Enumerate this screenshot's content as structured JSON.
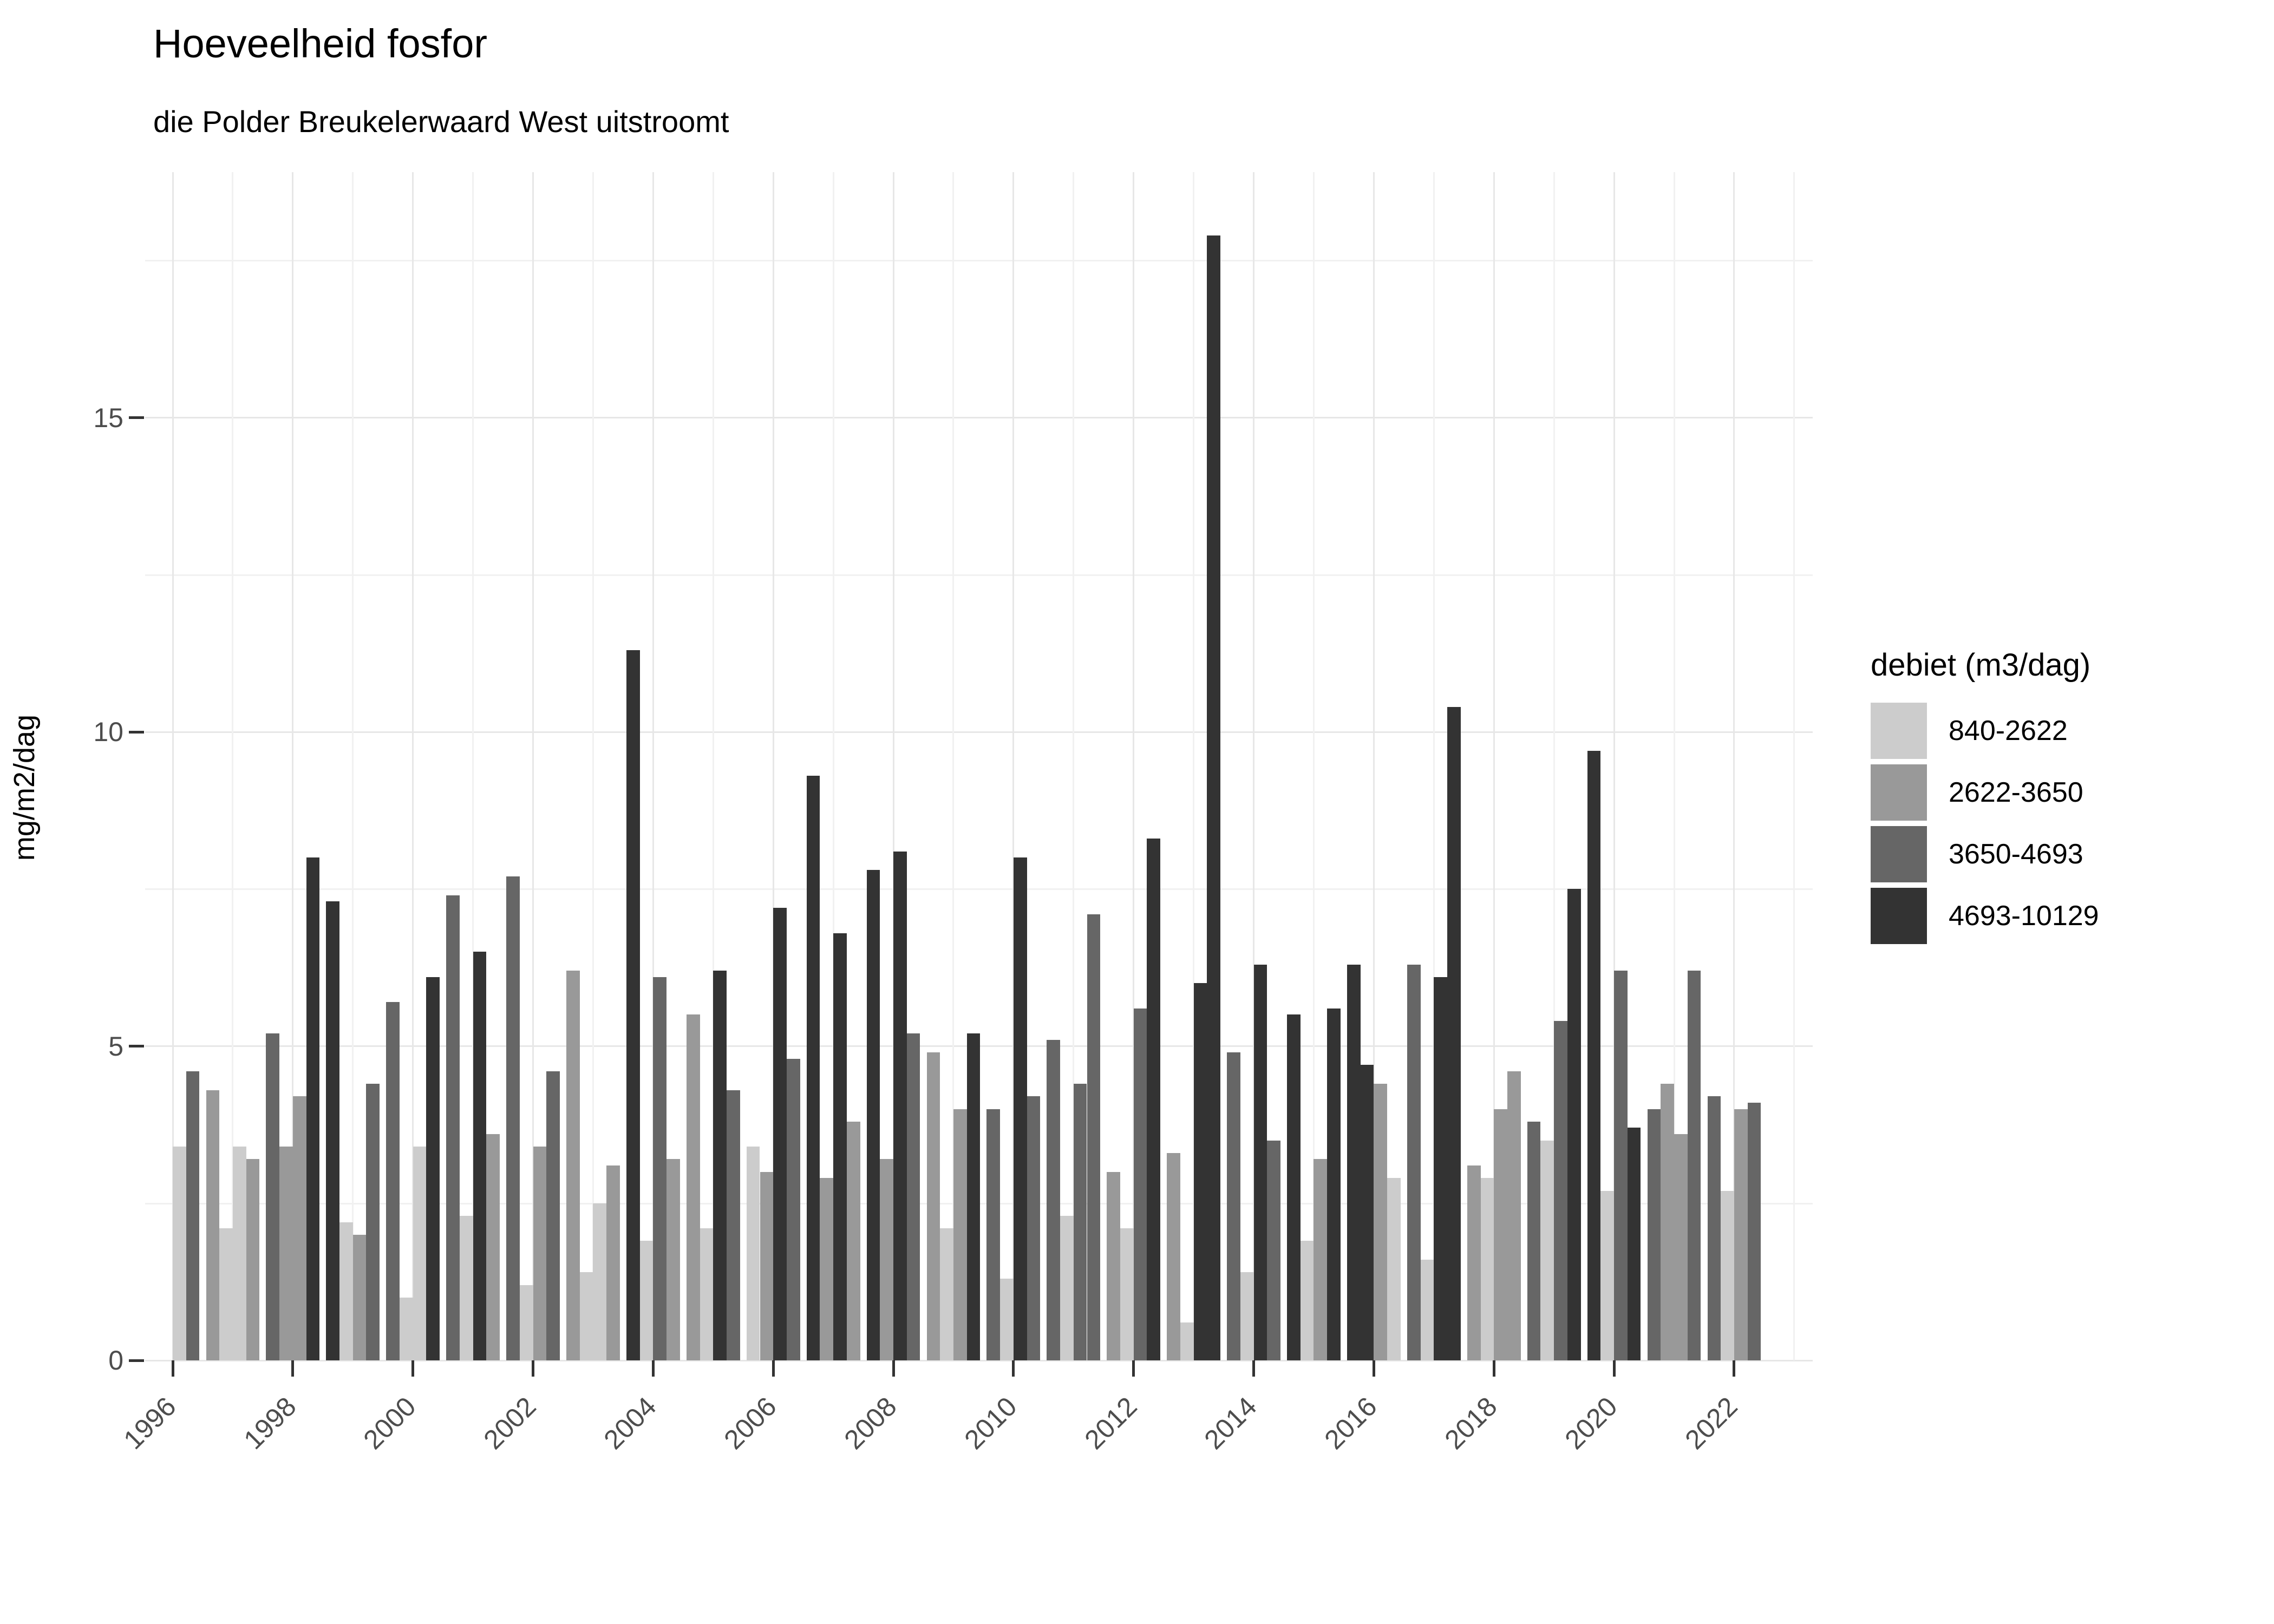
{
  "title": "Hoeveelheid fosfor",
  "subtitle": "die Polder Breukelerwaard West uitstroomt",
  "y_axis": {
    "label": "mg/m2/dag",
    "ticks": [
      0,
      5,
      10,
      15
    ],
    "minor_ticks": [
      2.5,
      7.5,
      12.5,
      17.5
    ],
    "range": [
      0,
      18.9
    ]
  },
  "x_axis": {
    "ticks": [
      1996,
      1998,
      2000,
      2002,
      2004,
      2006,
      2008,
      2010,
      2012,
      2014,
      2016,
      2018,
      2020,
      2022
    ]
  },
  "legend": {
    "title": "debiet (m3/dag)",
    "items": [
      {
        "id": "L",
        "label": "840-2622",
        "color": "#cccccc"
      },
      {
        "id": "M",
        "label": "2622-3650",
        "color": "#999999"
      },
      {
        "id": "D",
        "label": "3650-4693",
        "color": "#666666"
      },
      {
        "id": "B",
        "label": "4693-10129",
        "color": "#333333"
      }
    ]
  },
  "chart_data": {
    "type": "bar",
    "title": "Hoeveelheid fosfor",
    "subtitle": "die Polder Breukelerwaard West uitstroomt",
    "ylabel": "mg/m2/dag",
    "ylim": [
      0,
      18.9
    ],
    "grid": true,
    "legend_position": "right",
    "group_by": "year",
    "slots_per_group": 4,
    "record_columns": [
      "year",
      "slot",
      "debiet_category",
      "value_mg_m2_dag"
    ],
    "records": [
      [
        1996,
        3,
        "L",
        3.4
      ],
      [
        1996,
        4,
        "D",
        4.6
      ],
      [
        1997,
        1,
        "M",
        4.3
      ],
      [
        1997,
        2,
        "L",
        2.1
      ],
      [
        1997,
        3,
        "L",
        3.4
      ],
      [
        1997,
        4,
        "M",
        3.2
      ],
      [
        1998,
        1,
        "D",
        5.2
      ],
      [
        1998,
        2,
        "M",
        3.4
      ],
      [
        1998,
        3,
        "M",
        4.2
      ],
      [
        1998,
        4,
        "B",
        8.0
      ],
      [
        1999,
        1,
        "B",
        7.3
      ],
      [
        1999,
        2,
        "L",
        2.2
      ],
      [
        1999,
        3,
        "M",
        2.0
      ],
      [
        1999,
        4,
        "D",
        4.4
      ],
      [
        2000,
        1,
        "D",
        5.7
      ],
      [
        2000,
        2,
        "L",
        1.0
      ],
      [
        2000,
        3,
        "L",
        3.4
      ],
      [
        2000,
        4,
        "B",
        6.1
      ],
      [
        2001,
        1,
        "D",
        7.4
      ],
      [
        2001,
        2,
        "L",
        2.3
      ],
      [
        2001,
        3,
        "B",
        6.5
      ],
      [
        2001,
        4,
        "M",
        3.6
      ],
      [
        2002,
        1,
        "D",
        7.7
      ],
      [
        2002,
        2,
        "L",
        1.2
      ],
      [
        2002,
        3,
        "M",
        3.4
      ],
      [
        2002,
        4,
        "D",
        4.6
      ],
      [
        2003,
        1,
        "M",
        6.2
      ],
      [
        2003,
        2,
        "L",
        1.4
      ],
      [
        2003,
        3,
        "L",
        2.5
      ],
      [
        2003,
        4,
        "M",
        3.1
      ],
      [
        2004,
        1,
        "B",
        11.3
      ],
      [
        2004,
        2,
        "L",
        1.9
      ],
      [
        2004,
        3,
        "D",
        6.1
      ],
      [
        2004,
        4,
        "M",
        3.2
      ],
      [
        2005,
        1,
        "M",
        5.5
      ],
      [
        2005,
        2,
        "L",
        2.1
      ],
      [
        2005,
        3,
        "B",
        6.2
      ],
      [
        2005,
        4,
        "D",
        4.3
      ],
      [
        2006,
        1,
        "L",
        3.4
      ],
      [
        2006,
        2,
        "M",
        3.0
      ],
      [
        2006,
        3,
        "B",
        7.2
      ],
      [
        2006,
        4,
        "D",
        4.8
      ],
      [
        2007,
        1,
        "B",
        9.3
      ],
      [
        2007,
        2,
        "M",
        2.9
      ],
      [
        2007,
        3,
        "B",
        6.8
      ],
      [
        2007,
        4,
        "M",
        3.8
      ],
      [
        2008,
        1,
        "B",
        7.8
      ],
      [
        2008,
        2,
        "M",
        3.2
      ],
      [
        2008,
        3,
        "B",
        8.1
      ],
      [
        2008,
        4,
        "D",
        5.2
      ],
      [
        2009,
        1,
        "M",
        4.9
      ],
      [
        2009,
        2,
        "L",
        2.1
      ],
      [
        2009,
        3,
        "M",
        4.0
      ],
      [
        2009,
        4,
        "B",
        5.2
      ],
      [
        2010,
        1,
        "D",
        4.0
      ],
      [
        2010,
        2,
        "L",
        1.3
      ],
      [
        2010,
        3,
        "B",
        8.0
      ],
      [
        2010,
        4,
        "D",
        4.2
      ],
      [
        2011,
        1,
        "D",
        5.1
      ],
      [
        2011,
        2,
        "L",
        2.3
      ],
      [
        2011,
        3,
        "D",
        4.4
      ],
      [
        2011,
        4,
        "D",
        7.1
      ],
      [
        2012,
        1,
        "M",
        3.0
      ],
      [
        2012,
        2,
        "L",
        2.1
      ],
      [
        2012,
        3,
        "D",
        5.6
      ],
      [
        2012,
        4,
        "B",
        8.3
      ],
      [
        2013,
        1,
        "M",
        3.3
      ],
      [
        2013,
        2,
        "L",
        0.6
      ],
      [
        2013,
        3,
        "B",
        6.0
      ],
      [
        2013,
        4,
        "B",
        17.9
      ],
      [
        2014,
        1,
        "D",
        4.9
      ],
      [
        2014,
        2,
        "L",
        1.4
      ],
      [
        2014,
        3,
        "B",
        6.3
      ],
      [
        2014,
        4,
        "D",
        3.5
      ],
      [
        2015,
        1,
        "B",
        5.5
      ],
      [
        2015,
        2,
        "L",
        1.9
      ],
      [
        2015,
        3,
        "M",
        3.2
      ],
      [
        2015,
        4,
        "B",
        5.6
      ],
      [
        2016,
        1,
        "B",
        6.3
      ],
      [
        2016,
        2,
        "B",
        4.7
      ],
      [
        2016,
        3,
        "M",
        4.4
      ],
      [
        2016,
        4,
        "L",
        2.9
      ],
      [
        2017,
        1,
        "D",
        6.3
      ],
      [
        2017,
        2,
        "L",
        1.6
      ],
      [
        2017,
        3,
        "B",
        6.1
      ],
      [
        2017,
        4,
        "B",
        10.4
      ],
      [
        2018,
        1,
        "M",
        3.1
      ],
      [
        2018,
        2,
        "L",
        2.9
      ],
      [
        2018,
        3,
        "M",
        4.0
      ],
      [
        2018,
        4,
        "M",
        4.6
      ],
      [
        2019,
        1,
        "D",
        3.8
      ],
      [
        2019,
        2,
        "L",
        3.5
      ],
      [
        2019,
        3,
        "D",
        5.4
      ],
      [
        2019,
        4,
        "B",
        7.5
      ],
      [
        2020,
        1,
        "B",
        9.7
      ],
      [
        2020,
        2,
        "L",
        2.7
      ],
      [
        2020,
        3,
        "D",
        6.2
      ],
      [
        2020,
        4,
        "B",
        3.7
      ],
      [
        2021,
        1,
        "D",
        4.0
      ],
      [
        2021,
        2,
        "M",
        4.4
      ],
      [
        2021,
        3,
        "M",
        3.6
      ],
      [
        2021,
        4,
        "D",
        6.2
      ],
      [
        2022,
        1,
        "D",
        4.2
      ],
      [
        2022,
        2,
        "L",
        2.7
      ],
      [
        2022,
        3,
        "M",
        4.0
      ],
      [
        2022,
        4,
        "D",
        4.1
      ]
    ]
  }
}
